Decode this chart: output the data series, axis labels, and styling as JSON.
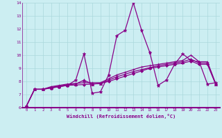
{
  "xlabel": "Windchill (Refroidissement éolien,°C)",
  "background_color": "#cceef2",
  "grid_color": "#aad8dc",
  "line_color": "#880088",
  "xlim": [
    -0.5,
    23.5
  ],
  "ylim": [
    6,
    14
  ],
  "yticks": [
    6,
    7,
    8,
    9,
    10,
    11,
    12,
    13,
    14
  ],
  "xticks": [
    0,
    1,
    2,
    3,
    4,
    5,
    6,
    7,
    8,
    9,
    10,
    11,
    12,
    13,
    14,
    15,
    16,
    17,
    18,
    19,
    20,
    21,
    22,
    23
  ],
  "series": [
    {
      "x": [
        0,
        1,
        2,
        3,
        4,
        5,
        6,
        7,
        8,
        9,
        10,
        11,
        12,
        13,
        14,
        15,
        16,
        17,
        18,
        19,
        20,
        21,
        22,
        23
      ],
      "y": [
        6.1,
        7.4,
        7.4,
        7.5,
        7.6,
        7.7,
        8.1,
        10.1,
        7.1,
        7.2,
        8.5,
        11.5,
        11.9,
        14.0,
        11.9,
        10.2,
        7.7,
        8.1,
        9.3,
        10.1,
        9.6,
        9.5,
        7.8,
        7.9
      ],
      "marker": "*",
      "markersize": 3.5,
      "linewidth": 0.9
    },
    {
      "x": [
        0,
        1,
        2,
        3,
        4,
        5,
        6,
        7,
        8,
        9,
        10,
        11,
        12,
        13,
        14,
        15,
        16,
        17,
        18,
        19,
        20,
        21,
        22,
        23
      ],
      "y": [
        6.1,
        7.4,
        7.4,
        7.6,
        7.7,
        7.8,
        7.85,
        7.9,
        7.9,
        7.9,
        8.2,
        8.5,
        8.7,
        8.9,
        9.1,
        9.2,
        9.3,
        9.4,
        9.5,
        9.6,
        10.0,
        9.5,
        9.5,
        7.85
      ],
      "marker": "+",
      "markersize": 3,
      "linewidth": 0.9
    },
    {
      "x": [
        0,
        1,
        2,
        3,
        4,
        5,
        6,
        7,
        8,
        9,
        10,
        11,
        12,
        13,
        14,
        15,
        16,
        17,
        18,
        19,
        20,
        21,
        22,
        23
      ],
      "y": [
        6.1,
        7.4,
        7.4,
        7.55,
        7.65,
        7.75,
        7.8,
        8.1,
        7.8,
        7.85,
        8.1,
        8.35,
        8.55,
        8.75,
        8.9,
        9.05,
        9.2,
        9.3,
        9.4,
        9.5,
        9.7,
        9.4,
        9.4,
        7.8
      ],
      "marker": "^",
      "markersize": 3,
      "linewidth": 0.9
    },
    {
      "x": [
        0,
        1,
        2,
        3,
        4,
        5,
        6,
        7,
        8,
        9,
        10,
        11,
        12,
        13,
        14,
        15,
        16,
        17,
        18,
        19,
        20,
        21,
        22,
        23
      ],
      "y": [
        6.1,
        7.4,
        7.4,
        7.5,
        7.6,
        7.7,
        7.73,
        7.76,
        7.8,
        7.84,
        8.0,
        8.2,
        8.4,
        8.6,
        8.8,
        9.0,
        9.1,
        9.2,
        9.3,
        9.4,
        9.55,
        9.3,
        9.3,
        7.78
      ],
      "marker": "D",
      "markersize": 2,
      "linewidth": 0.9
    }
  ]
}
